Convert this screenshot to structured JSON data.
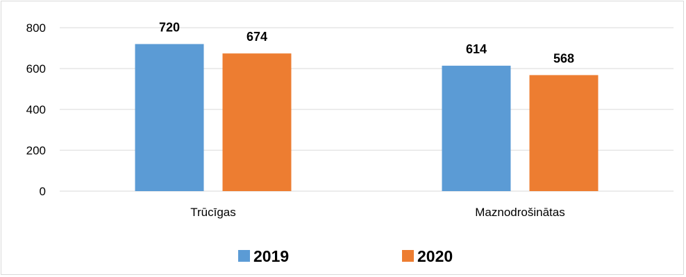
{
  "chart_data": {
    "type": "bar",
    "title": "",
    "xlabel": "",
    "ylabel": "",
    "categories": [
      "Trūcīgas",
      "Maznodrošinātas"
    ],
    "series": [
      {
        "name": "2019",
        "color": "#5b9bd5",
        "values": [
          720,
          614
        ]
      },
      {
        "name": "2020",
        "color": "#ed7d31",
        "values": [
          674,
          568
        ]
      }
    ],
    "ylim": [
      0,
      800
    ],
    "yticks": [
      0,
      200,
      400,
      600,
      800
    ],
    "grid": true,
    "legend": "bottom",
    "data_labels": true
  }
}
